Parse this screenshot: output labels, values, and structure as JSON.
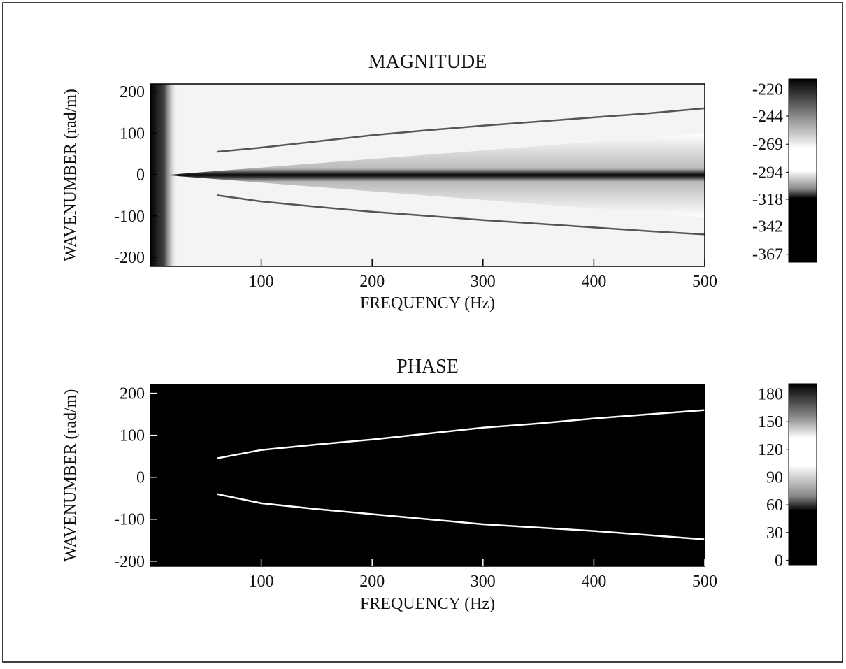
{
  "chart_data": [
    {
      "type": "heatmap",
      "title": "MAGNITUDE",
      "x_label": "FREQUENCY (Hz)",
      "y_label": "WAVENUMBER (rad/m)",
      "x": [
        60,
        100,
        150,
        200,
        250,
        300,
        350,
        400,
        450,
        500
      ],
      "series": [
        {
          "color": "#555555",
          "values": [
            55,
            65,
            80,
            95,
            107,
            118,
            128,
            138,
            148,
            160
          ]
        },
        {
          "color": "#555555",
          "values": [
            -50,
            -65,
            -78,
            -90,
            -100,
            -110,
            -119,
            -128,
            -137,
            -145
          ]
        }
      ],
      "xlim": [
        0,
        500
      ],
      "xticks": [
        100,
        200,
        300,
        400,
        500
      ],
      "ylim": [
        -222,
        219
      ],
      "yticks": [
        -200,
        -100,
        0,
        100,
        200
      ],
      "clim": [
        -374,
        -211
      ],
      "cticks": [
        -367,
        -342,
        -318,
        -294,
        -269,
        -244,
        -220
      ]
    },
    {
      "type": "heatmap",
      "title": "PHASE",
      "x_label": "FREQUENCY (Hz)",
      "y_label": "WAVENUMBER (rad/m)",
      "x": [
        60,
        100,
        150,
        200,
        250,
        300,
        350,
        400,
        450,
        500
      ],
      "series": [
        {
          "color": "#ffffff",
          "values": [
            45,
            65,
            78,
            90,
            104,
            118,
            128,
            140,
            150,
            160
          ]
        },
        {
          "color": "#ffffff",
          "values": [
            -40,
            -62,
            -76,
            -88,
            -100,
            -112,
            -120,
            -128,
            -138,
            -148
          ]
        }
      ],
      "xlim": [
        0,
        500
      ],
      "xticks": [
        100,
        200,
        300,
        400,
        500
      ],
      "ylim": [
        -212,
        221
      ],
      "yticks": [
        -200,
        -100,
        0,
        100,
        200
      ],
      "clim": [
        -5,
        191
      ],
      "cticks": [
        0,
        30,
        60,
        90,
        120,
        150,
        180
      ]
    }
  ]
}
